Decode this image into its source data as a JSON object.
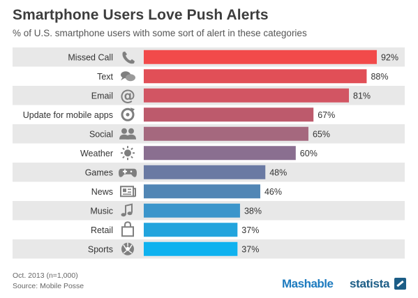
{
  "title": "Smartphone Users Love Push Alerts",
  "subtitle": "% of U.S. smartphone users with some sort of alert in these categories",
  "footer": {
    "note": "Oct. 2013 (n=1,000)",
    "source": "Source: Mobile Posse"
  },
  "brands": {
    "mashable": "Mashable",
    "statista": "statista"
  },
  "chart_data": {
    "type": "bar",
    "orientation": "horizontal",
    "categories": [
      "Missed Call",
      "Text",
      "Email",
      "Update for mobile apps",
      "Social",
      "Weather",
      "Games",
      "News",
      "Music",
      "Retail",
      "Sports"
    ],
    "values": [
      92,
      88,
      81,
      67,
      65,
      60,
      48,
      46,
      38,
      37,
      37
    ],
    "value_labels": [
      "92%",
      "88%",
      "81%",
      "67%",
      "65%",
      "60%",
      "48%",
      "46%",
      "38%",
      "37%",
      "37%"
    ],
    "icons": [
      "phone-icon",
      "speech-bubbles-icon",
      "at-sign-icon",
      "update-arrow-icon",
      "people-icon",
      "sun-icon",
      "gamepad-icon",
      "newspaper-icon",
      "music-note-icon",
      "shopping-bag-icon",
      "soccer-ball-icon"
    ],
    "bar_colors": [
      "#f24a4a",
      "#e14f57",
      "#d25563",
      "#bd5a6c",
      "#a5687e",
      "#8a6f90",
      "#6a7aa3",
      "#5186b5",
      "#3b95cb",
      "#22a4dd",
      "#0fb2ef"
    ],
    "row_stripe_color": "#e8e8e8",
    "xlim": [
      0,
      100
    ],
    "grid": false,
    "legend": "none"
  }
}
